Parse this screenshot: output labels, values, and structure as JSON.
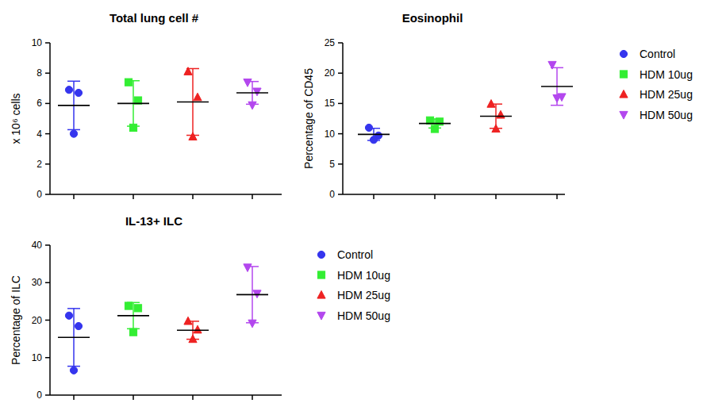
{
  "chart_data": [
    {
      "type": "scatter",
      "title": "Total lung cell #",
      "y_label": "x 10⁶ cells",
      "ylim": [
        0,
        10
      ],
      "yticks": [
        0,
        2,
        4,
        6,
        8,
        10
      ],
      "tick_labels": "y",
      "series": [
        {
          "color": "#3535ee",
          "marker": "circle",
          "values": [
            6.9,
            6.7,
            4.0
          ],
          "mean": 5.87,
          "error": 1.6
        },
        {
          "color": "#33ee33",
          "marker": "square",
          "values": [
            7.4,
            6.2,
            4.4
          ],
          "mean": 6.0,
          "error": 1.5
        },
        {
          "color": "#ee2222",
          "marker": "triangle",
          "values": [
            8.1,
            6.4,
            3.8
          ],
          "mean": 6.1,
          "error": 2.2
        },
        {
          "color": "#b347ee",
          "marker": "triangle-down",
          "values": [
            7.4,
            6.8,
            5.9
          ],
          "mean": 6.7,
          "error": 0.75
        }
      ]
    },
    {
      "type": "scatter",
      "title": "Eosinophil",
      "y_label": "Percentage of CD45",
      "ylim": [
        0,
        25
      ],
      "yticks": [
        0,
        5,
        10,
        15,
        20,
        25
      ],
      "tick_labels": "y",
      "legend": "right",
      "series": [
        {
          "name": "Control",
          "color": "#3535ee",
          "marker": "circle",
          "values": [
            11.0,
            9.7,
            9.0
          ],
          "mean": 9.9,
          "error": 1.0
        },
        {
          "name": "HDM 10ug",
          "color": "#33ee33",
          "marker": "square",
          "values": [
            12.2,
            12.0,
            10.8
          ],
          "mean": 11.7,
          "error": 0.75
        },
        {
          "name": "HDM 25ug",
          "color": "#ee2222",
          "marker": "triangle",
          "values": [
            14.9,
            13.1,
            10.8
          ],
          "mean": 12.9,
          "error": 2.0
        },
        {
          "name": "HDM 50ug",
          "color": "#b347ee",
          "marker": "triangle-down",
          "values": [
            21.4,
            16.1,
            15.9
          ],
          "mean": 17.8,
          "error": 3.1
        }
      ]
    },
    {
      "type": "scatter",
      "title": "IL-13+ ILC",
      "y_label": "Percentage of ILC",
      "ylim": [
        0,
        40
      ],
      "yticks": [
        0,
        10,
        20,
        30,
        40
      ],
      "tick_labels": "y",
      "legend": "right",
      "series": [
        {
          "name": "Control",
          "color": "#3535ee",
          "marker": "circle",
          "values": [
            21.2,
            18.4,
            6.6
          ],
          "mean": 15.4,
          "error": 7.7
        },
        {
          "name": "HDM 10ug",
          "color": "#33ee33",
          "marker": "square",
          "values": [
            23.8,
            23.2,
            16.8
          ],
          "mean": 21.2,
          "error": 3.5
        },
        {
          "name": "HDM 25ug",
          "color": "#ee2222",
          "marker": "triangle",
          "values": [
            19.7,
            17.4,
            14.9
          ],
          "mean": 17.3,
          "error": 2.4
        },
        {
          "name": "HDM 50ug",
          "color": "#b347ee",
          "marker": "triangle-down",
          "values": [
            34.1,
            27.1,
            19.2
          ],
          "mean": 26.8,
          "error": 7.5
        }
      ]
    }
  ]
}
